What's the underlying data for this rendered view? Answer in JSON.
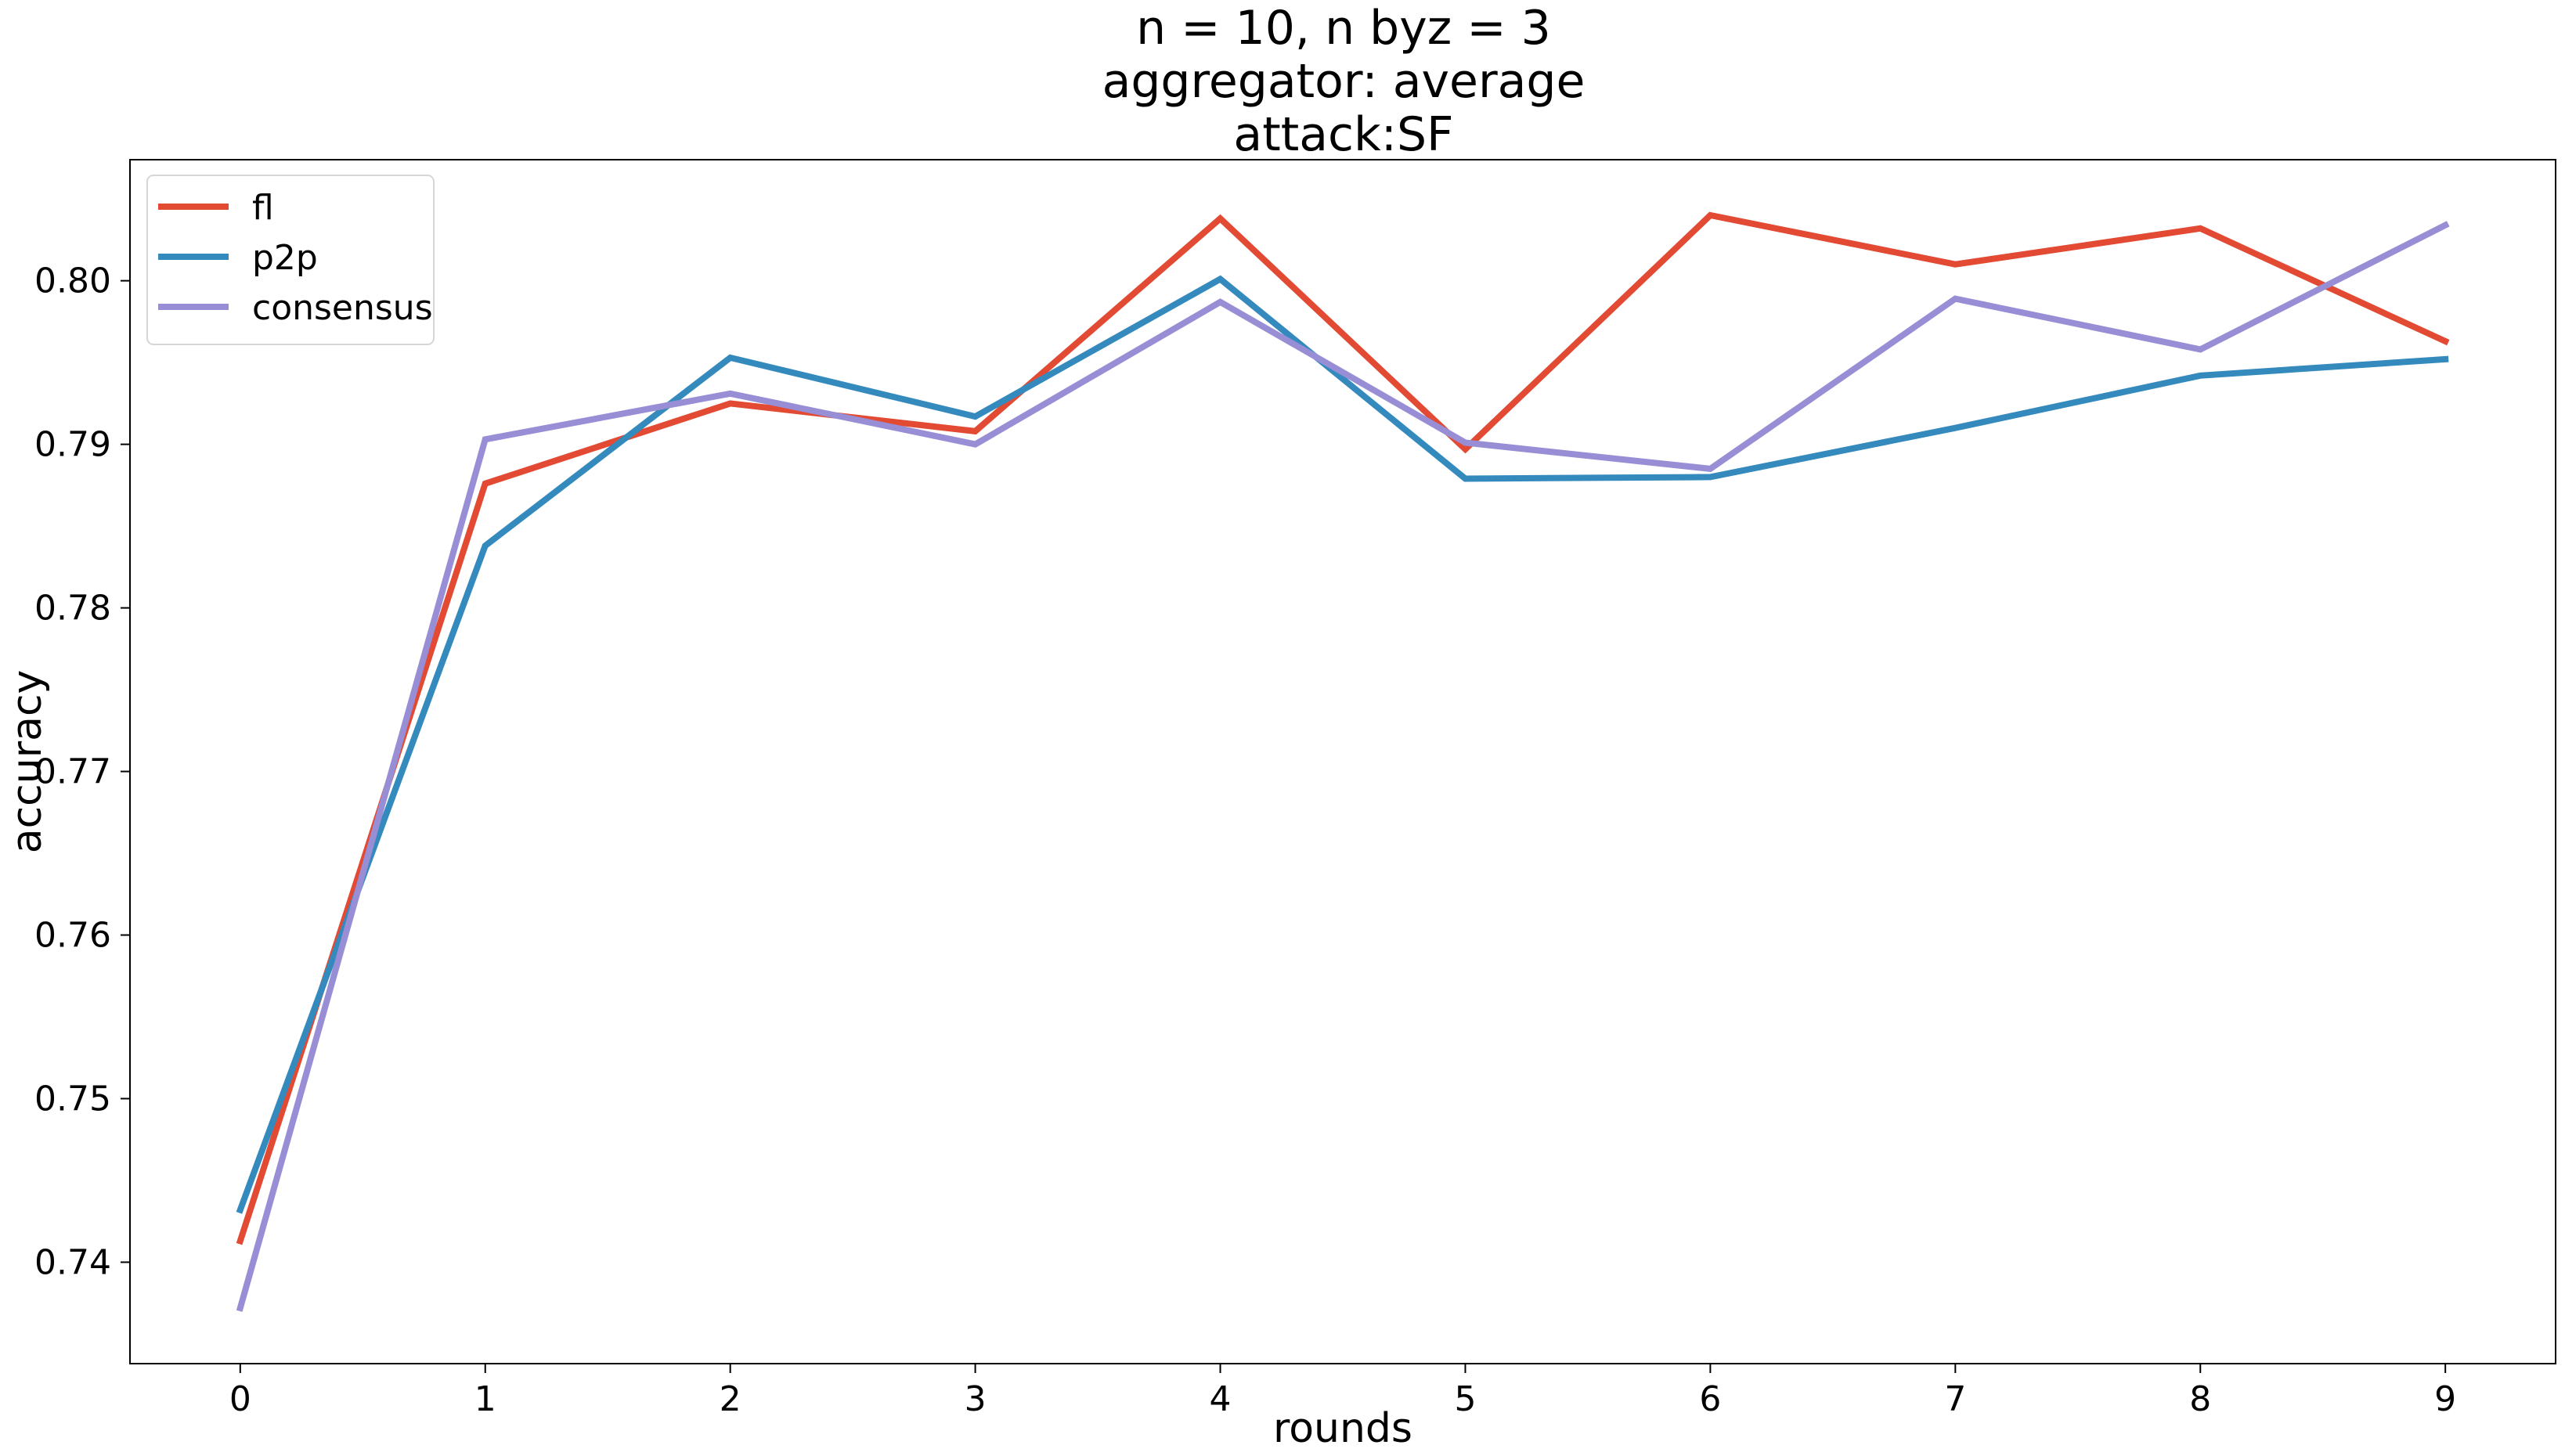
{
  "chart_data": {
    "type": "line",
    "title": [
      "n = 10, n byz = 3",
      "aggregator: average",
      "attack:SF"
    ],
    "xlabel": "rounds",
    "ylabel": "accuracy",
    "x": [
      0,
      1,
      2,
      3,
      4,
      5,
      6,
      7,
      8,
      9
    ],
    "xlim": [
      -0.45,
      9.45
    ],
    "ylim": [
      0.7338,
      0.8074
    ],
    "xticks": [
      0,
      1,
      2,
      3,
      4,
      5,
      6,
      7,
      8,
      9
    ],
    "yticks": [
      0.74,
      0.75,
      0.76,
      0.77,
      0.78,
      0.79,
      0.8
    ],
    "ytick_labels": [
      "0.74",
      "0.75",
      "0.76",
      "0.77",
      "0.78",
      "0.79",
      "0.80"
    ],
    "grid": false,
    "legend_position": "upper-left",
    "series": [
      {
        "name": "fl",
        "color": "#e24a33",
        "values": [
          0.7413,
          0.7876,
          0.7925,
          0.7908,
          0.8038,
          0.7897,
          0.804,
          0.801,
          0.8032,
          0.7963
        ]
      },
      {
        "name": "p2p",
        "color": "#348abd",
        "values": [
          0.7432,
          0.7838,
          0.7953,
          0.7917,
          0.8001,
          0.7879,
          0.788,
          0.791,
          0.7942,
          0.7952
        ]
      },
      {
        "name": "consensus",
        "color": "#988ed5",
        "values": [
          0.7372,
          0.7903,
          0.7931,
          0.79,
          0.7987,
          0.7901,
          0.7885,
          0.7989,
          0.7958,
          0.8034
        ]
      }
    ]
  }
}
